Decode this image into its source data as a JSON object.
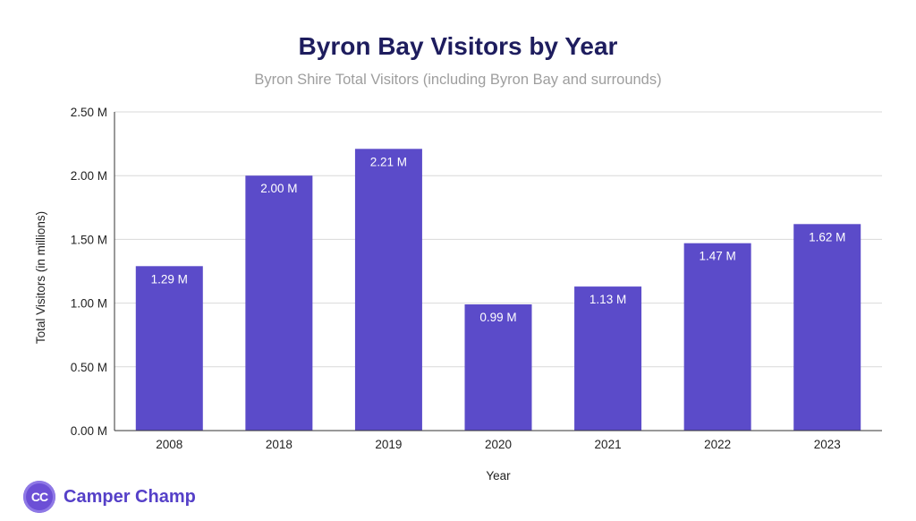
{
  "chart_data": {
    "type": "bar",
    "title": "Byron Bay Visitors by Year",
    "subtitle": "Byron Shire Total Visitors (including Byron Bay and surrounds)",
    "xlabel": "Year",
    "ylabel": "Total Visitors (in millions)",
    "categories": [
      "2008",
      "2018",
      "2019",
      "2020",
      "2021",
      "2022",
      "2023"
    ],
    "values": [
      1.29,
      2.0,
      2.21,
      0.99,
      1.13,
      1.47,
      1.62
    ],
    "data_labels": [
      "1.29 M",
      "2.00 M",
      "2.21 M",
      "0.99 M",
      "1.13 M",
      "1.47 M",
      "1.62 M"
    ],
    "ylim": [
      0,
      2.5
    ],
    "y_ticks": [
      0,
      0.5,
      1.0,
      1.5,
      2.0,
      2.5
    ],
    "y_tick_labels": [
      "0.00 M",
      "0.50 M",
      "1.00 M",
      "1.50 M",
      "2.00 M",
      "2.50 M"
    ],
    "grid": true,
    "bar_color": "#5b4bc9"
  },
  "brand": {
    "logo_text": "CC",
    "name": "Camper Champ",
    "color": "#5540c8"
  }
}
